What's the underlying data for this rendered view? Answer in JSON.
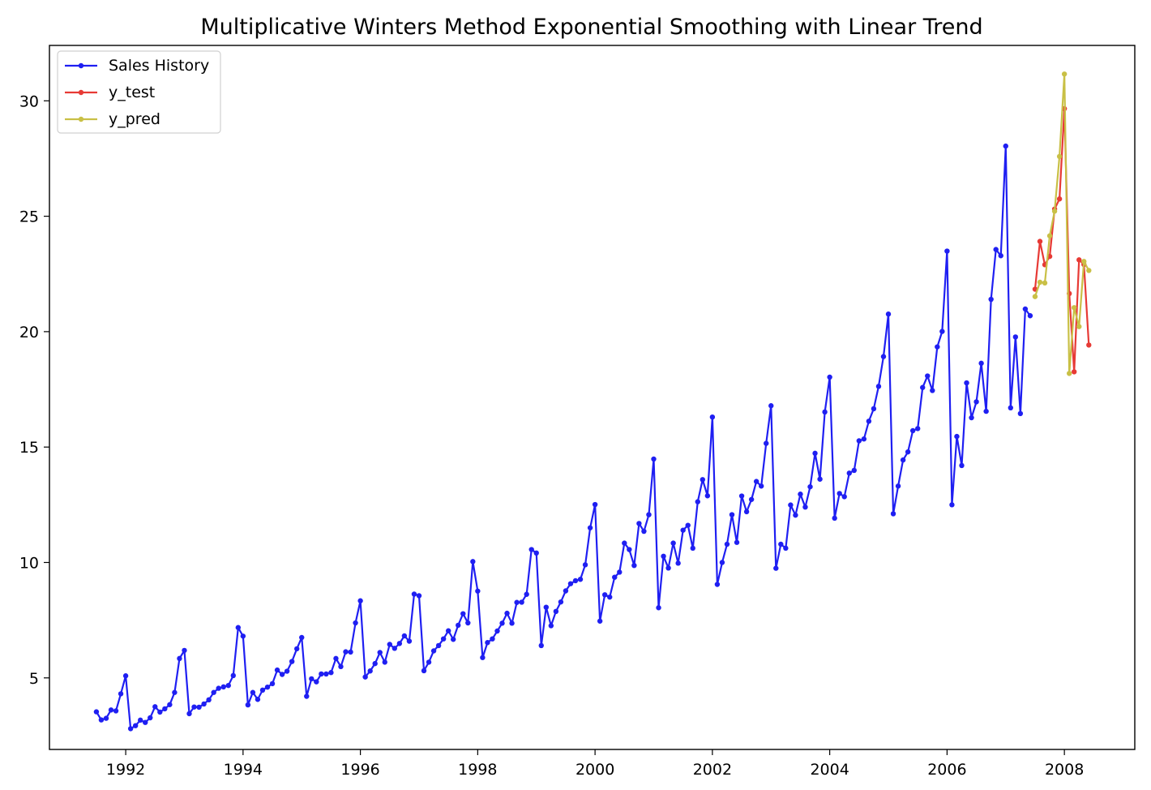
{
  "chart_data": {
    "type": "line",
    "title": "Multiplicative Winters Method Exponential Smoothing with Linear Trend",
    "xlabel": "",
    "ylabel": "",
    "xlim": [
      1990.7,
      2009.2
    ],
    "ylim": [
      1.9,
      32.4
    ],
    "x_ticks": [
      {
        "value": 1992,
        "label": "1992"
      },
      {
        "value": 1994,
        "label": "1994"
      },
      {
        "value": 1996,
        "label": "1996"
      },
      {
        "value": 1998,
        "label": "1998"
      },
      {
        "value": 2000,
        "label": "2000"
      },
      {
        "value": 2002,
        "label": "2002"
      },
      {
        "value": 2004,
        "label": "2004"
      },
      {
        "value": 2006,
        "label": "2006"
      },
      {
        "value": 2008,
        "label": "2008"
      }
    ],
    "y_ticks": [
      {
        "value": 5,
        "label": "5"
      },
      {
        "value": 10,
        "label": "10"
      },
      {
        "value": 15,
        "label": "15"
      },
      {
        "value": 20,
        "label": "20"
      },
      {
        "value": 25,
        "label": "25"
      },
      {
        "value": 30,
        "label": "30"
      }
    ],
    "legend_position": "top-left",
    "grid": false,
    "series": [
      {
        "name": "Sales History",
        "color": "#1f1ff2",
        "start": "1991-07",
        "values": [
          3.53,
          3.18,
          3.25,
          3.61,
          3.57,
          4.31,
          5.09,
          2.8,
          2.93,
          3.17,
          3.07,
          3.27,
          3.75,
          3.52,
          3.66,
          3.84,
          4.37,
          5.84,
          6.19,
          3.45,
          3.74,
          3.73,
          3.87,
          4.05,
          4.37,
          4.55,
          4.61,
          4.67,
          5.1,
          7.18,
          6.81,
          3.83,
          4.37,
          4.07,
          4.47,
          4.6,
          4.75,
          5.34,
          5.15,
          5.29,
          5.71,
          6.26,
          6.75,
          4.2,
          4.96,
          4.83,
          5.17,
          5.17,
          5.23,
          5.84,
          5.49,
          6.13,
          6.12,
          7.38,
          8.34,
          5.04,
          5.3,
          5.62,
          6.1,
          5.68,
          6.45,
          6.28,
          6.49,
          6.82,
          6.59,
          8.63,
          8.56,
          5.31,
          5.68,
          6.17,
          6.4,
          6.69,
          7.04,
          6.67,
          7.28,
          7.78,
          7.38,
          10.04,
          8.76,
          5.88,
          6.53,
          6.69,
          7.03,
          7.37,
          7.8,
          7.37,
          8.27,
          8.28,
          8.62,
          10.56,
          10.41,
          6.4,
          8.06,
          7.26,
          7.88,
          8.29,
          8.77,
          9.08,
          9.21,
          9.27,
          9.9,
          11.5,
          12.51,
          7.46,
          8.6,
          8.5,
          9.36,
          9.58,
          10.84,
          10.56,
          9.87,
          11.69,
          11.35,
          12.07,
          14.48,
          8.04,
          10.27,
          9.76,
          10.84,
          9.97,
          11.4,
          11.61,
          10.62,
          12.63,
          13.59,
          12.89,
          16.3,
          9.05,
          10.0,
          10.79,
          12.07,
          10.87,
          12.88,
          12.2,
          12.73,
          13.51,
          13.31,
          15.16,
          16.79,
          9.75,
          10.79,
          10.62,
          12.49,
          12.05,
          12.96,
          12.4,
          13.28,
          14.73,
          13.61,
          16.52,
          18.03,
          11.92,
          12.99,
          12.85,
          13.87,
          13.99,
          15.27,
          15.35,
          16.12,
          16.66,
          17.63,
          18.92,
          20.76,
          12.11,
          13.31,
          14.44,
          14.79,
          15.71,
          15.8,
          17.58,
          18.08,
          17.45,
          19.34,
          20.01,
          23.49,
          12.5,
          15.46,
          14.2,
          17.78,
          16.27,
          16.96,
          18.63,
          16.55,
          21.4,
          23.56,
          23.29,
          28.04,
          16.7,
          19.77,
          16.45,
          20.98,
          20.69
        ]
      },
      {
        "name": "y_test",
        "color": "#e73a35",
        "start": "2007-07",
        "values": [
          21.84,
          23.91,
          22.9,
          23.26,
          25.31,
          25.75,
          29.66,
          21.65,
          18.26,
          23.11,
          22.91,
          19.42
        ]
      },
      {
        "name": "y_pred",
        "color": "#c9c046",
        "start": "2007-07",
        "values": [
          21.52,
          22.14,
          22.11,
          24.15,
          25.22,
          27.59,
          31.16,
          18.19,
          21.04,
          20.22,
          23.04,
          22.65
        ]
      }
    ]
  }
}
